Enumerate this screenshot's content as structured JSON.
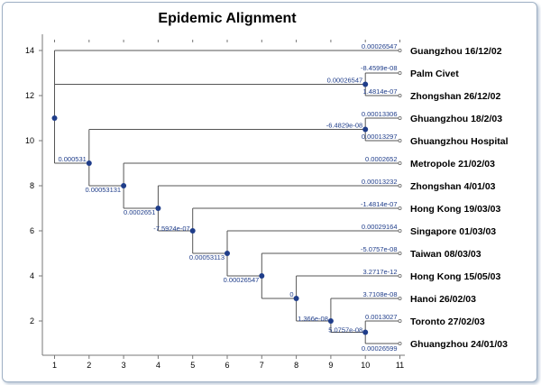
{
  "title": "Epidemic Alignment",
  "x_ticks": [
    "1",
    "2",
    "3",
    "4",
    "5",
    "6",
    "7",
    "8",
    "9",
    "10",
    "11"
  ],
  "y_ticks": [
    "2",
    "4",
    "6",
    "8",
    "10",
    "12",
    "14"
  ],
  "colors": {
    "node": "#1f3d8a",
    "label": "#1f3d8a",
    "line": "#555555",
    "frame": "#9fb0c4"
  },
  "leaves": [
    "Guangzhou 16/12/02",
    "Palm Civet",
    "Zhongshan 26/12/02",
    "Ghuangzhou 18/2/03",
    "Ghuangzhou Hospital",
    "Metropole 21/02/03",
    "Zhongshan 4/01/03",
    "Hong Kong 19/03/03",
    "Singapore 01/03/03",
    "Taiwan 08/03/03",
    "Hong Kong 15/05/03",
    "Hanoi 26/02/03",
    "Toronto 27/02/03",
    "Ghuangzhou 24/01/03"
  ],
  "branch_labels": [
    "0.00026547",
    "-8.4599e-08",
    "1.4814e-07",
    "0.00026547",
    "0.00013306",
    "-6.4829e-08",
    "0.00013297",
    "0.000531",
    "0.0002652",
    "0.00053131",
    "0.00013232",
    "0.0002651",
    "-1.4814e-07",
    "-7.5924e-07",
    "0.00029164",
    "0.00053113",
    "-5.0757e-08",
    "0.00026547",
    "3.2717e-12",
    "0",
    "3.7108e-08",
    "1.366e-08",
    "0.0013027",
    "5.0757e-08",
    "0.00026599"
  ]
}
